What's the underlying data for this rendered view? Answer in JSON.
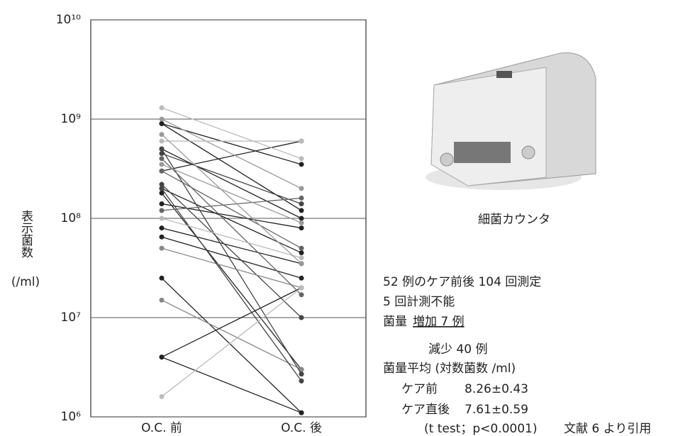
{
  "chart_data": {
    "type": "paired-line",
    "categories": [
      "O.C. 前",
      "O.C. 後"
    ],
    "y_label": "表示菌数",
    "y_unit": "(/ml)",
    "log_scale": true,
    "grid": true,
    "ylim": [
      1000000,
      10000000000
    ],
    "yticks": [
      {
        "value": 1000000,
        "label": "10⁶"
      },
      {
        "value": 10000000,
        "label": "10⁷"
      },
      {
        "value": 100000000,
        "label": "10⁸"
      },
      {
        "value": 1000000000,
        "label": "10⁹"
      },
      {
        "value": 10000000000,
        "label": "10¹⁰"
      }
    ],
    "series": [
      {
        "color": "#222222",
        "values": [
          900000000,
          350000000
        ]
      },
      {
        "color": "#222222",
        "values": [
          900000000,
          120000000
        ]
      },
      {
        "color": "#222222",
        "values": [
          500000000,
          100000000
        ]
      },
      {
        "color": "#222222",
        "values": [
          300000000,
          600000000
        ]
      },
      {
        "color": "#222222",
        "values": [
          200000000,
          45000000
        ]
      },
      {
        "color": "#222222",
        "values": [
          180000000,
          3000000
        ]
      },
      {
        "color": "#222222",
        "values": [
          80000000,
          35000000
        ]
      },
      {
        "color": "#222222",
        "values": [
          65000000,
          25000000
        ]
      },
      {
        "color": "#222222",
        "values": [
          25000000,
          1100000
        ]
      },
      {
        "color": "#888888",
        "values": [
          15000000,
          3000000
        ]
      },
      {
        "color": "#222222",
        "values": [
          4000000,
          20000000
        ]
      },
      {
        "color": "#222222",
        "values": [
          4000000,
          1100000
        ]
      },
      {
        "color": "#222222",
        "values": [
          140000000,
          80000000
        ]
      },
      {
        "color": "#444444",
        "values": [
          450000000,
          140000000
        ]
      },
      {
        "color": "#444444",
        "values": [
          500000000,
          2700000
        ]
      },
      {
        "color": "#666666",
        "values": [
          300000000,
          50000000
        ]
      },
      {
        "color": "#444444",
        "values": [
          220000000,
          10000000
        ]
      },
      {
        "color": "#666666",
        "values": [
          120000000,
          160000000
        ]
      },
      {
        "color": "#888888",
        "values": [
          50000000,
          20000000
        ]
      },
      {
        "color": "#999999",
        "values": [
          1000000000,
          200000000
        ]
      },
      {
        "color": "#bbbbbb",
        "values": [
          600000000,
          600000000
        ]
      },
      {
        "color": "#666666",
        "values": [
          400000000,
          17000000
        ]
      },
      {
        "color": "#444444",
        "values": [
          200000000,
          2300000
        ]
      },
      {
        "color": "#bbbbbb",
        "values": [
          1300000000,
          400000000
        ]
      },
      {
        "color": "#bbbbbb",
        "values": [
          100000000,
          40000000
        ]
      },
      {
        "color": "#bbbbbb",
        "values": [
          1600000,
          20000000
        ]
      },
      {
        "color": "#999999",
        "values": [
          350000000,
          90000000
        ]
      },
      {
        "color": "#999999",
        "values": [
          700000000,
          35000000
        ]
      }
    ],
    "photo_caption": "細菌カウンタ",
    "notes": {
      "line1": "52 例のケア前後 104 回測定",
      "line2": "5 回計測不能",
      "amount": "菌量",
      "increase": "増加 7 例",
      "decrease": "減少 40 例",
      "mean_title": "菌量平均 (対数菌数 /ml)",
      "before_label": "ケア前",
      "before_value": "8.26±0.43",
      "after_label": "ケア直後",
      "after_value": "7.61±0.59",
      "test": "(t test；p<0.0001)",
      "source": "文献 6 より引用"
    }
  }
}
